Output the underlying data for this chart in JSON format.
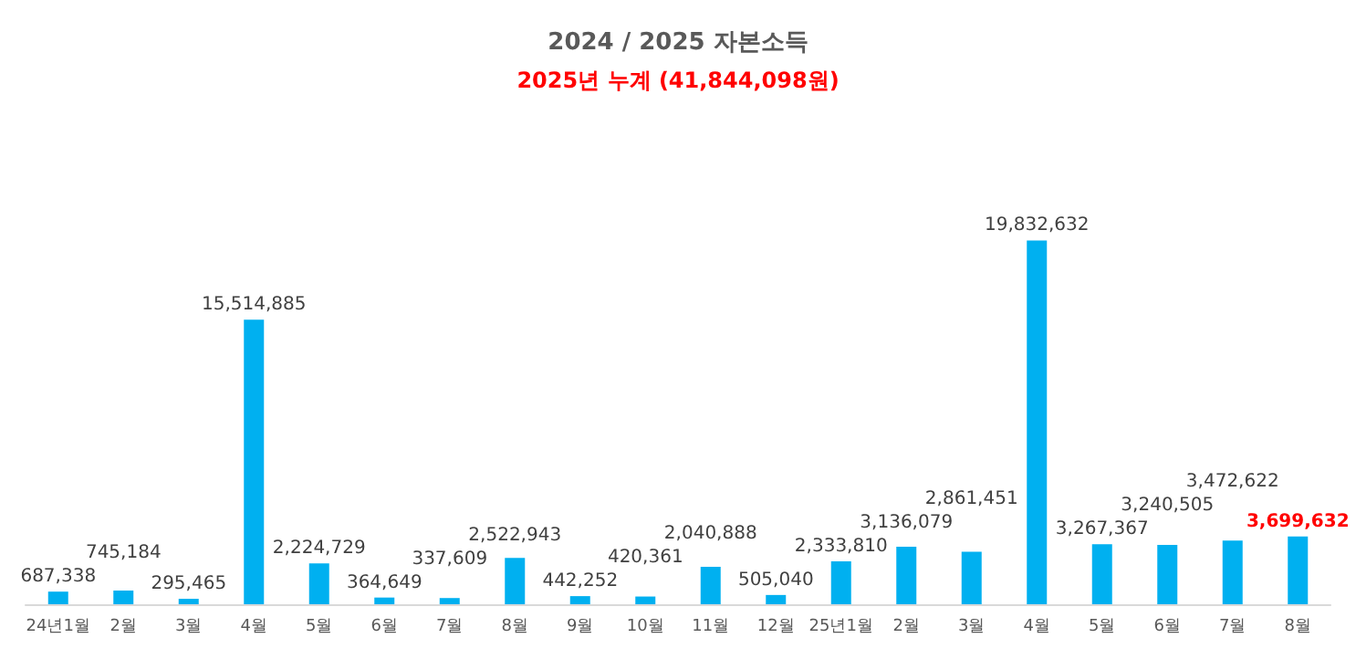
{
  "chart_data": {
    "type": "bar",
    "title": "2024 / 2025 자본소득",
    "subtitle": "2025년 누계 (41,844,098원)",
    "categories": [
      "24년1월",
      "2월",
      "3월",
      "4월",
      "5월",
      "6월",
      "7월",
      "8월",
      "9월",
      "10월",
      "11월",
      "12월",
      "25년1월",
      "2월",
      "3월",
      "4월",
      "5월",
      "6월",
      "7월",
      "8월"
    ],
    "values": [
      687338,
      745184,
      295465,
      15514885,
      2224729,
      364649,
      337609,
      2522943,
      442252,
      420361,
      2040888,
      505040,
      2333810,
      3136079,
      2861451,
      19832632,
      3267367,
      3240505,
      3472622,
      3699632
    ],
    "value_labels": [
      "687,338",
      "745,184",
      "295,465",
      "15,514,885",
      "2,224,729",
      "364,649",
      "337,609",
      "2,522,943",
      "442,252",
      "420,361",
      "2,040,888",
      "505,040",
      "2,333,810",
      "3,136,079",
      "2,861,451",
      "19,832,632",
      "3,267,367",
      "3,240,505",
      "3,472,622",
      "3,699,632"
    ],
    "color": "#00b0f0"
  }
}
